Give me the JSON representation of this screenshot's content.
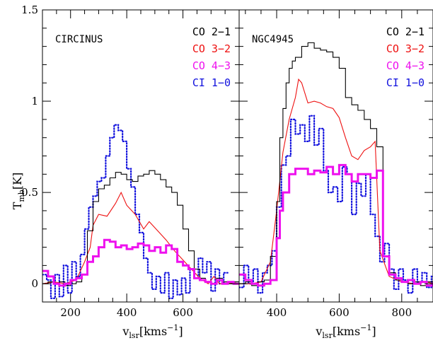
{
  "chart_data": {
    "type": "line",
    "shared_ylabel": {
      "main": "T",
      "sub": "mb",
      "unit": "[K]"
    },
    "shared_xlabel": {
      "main": "v",
      "sub": "lsr",
      "unit_open": "[kms",
      "unit_exp": "−1",
      "unit_close": "]"
    },
    "ylim": [
      -0.1,
      1.5
    ],
    "yticks": [
      {
        "value": 0,
        "label": "0"
      },
      {
        "value": 0.5,
        "label": "0.5"
      },
      {
        "value": 1,
        "label": "1"
      },
      {
        "value": 1.5,
        "label": "1.5"
      }
    ],
    "legend": [
      {
        "label": "CO 2−1",
        "color": "#000000",
        "style": "solid"
      },
      {
        "label": "CO 3−2",
        "color": "#ee1111",
        "style": "solid"
      },
      {
        "label": "CO 4−3",
        "color": "#ee11ee",
        "style": "thick"
      },
      {
        "label": "CI 1−0",
        "color": "#1111dd",
        "style": "dotted"
      }
    ],
    "panels": [
      {
        "name": "CIRCINUS",
        "xlim": [
          100,
          800
        ],
        "xticks": [
          {
            "value": 200,
            "label": "200"
          },
          {
            "value": 400,
            "label": "400"
          },
          {
            "value": 600,
            "label": "600"
          }
        ],
        "series": [
          {
            "key": "co21",
            "x": [
              100,
              120,
              140,
              160,
              180,
              200,
              220,
              240,
              260,
              280,
              300,
              320,
              340,
              360,
              380,
              400,
              420,
              440,
              460,
              480,
              500,
              520,
              540,
              560,
              580,
              600,
              620,
              640,
              660,
              680,
              700,
              720,
              740,
              760,
              780
            ],
            "y": [
              0,
              0.01,
              0,
              0.01,
              -0.01,
              0,
              0.01,
              0.05,
              0.29,
              0.45,
              0.52,
              0.54,
              0.58,
              0.61,
              0.6,
              0.57,
              0.56,
              0.59,
              0.6,
              0.62,
              0.6,
              0.57,
              0.53,
              0.5,
              0.43,
              0.3,
              0.18,
              0.08,
              0.03,
              0.01,
              0,
              0.03,
              0.01,
              0,
              0.01
            ]
          },
          {
            "key": "co32",
            "x": [
              100,
              140,
              180,
              220,
              250,
              270,
              280,
              300,
              330,
              360,
              380,
              400,
              430,
              460,
              480,
              510,
              540,
              570,
              600,
              630,
              660,
              690,
              710,
              730,
              760,
              790
            ],
            "y": [
              0,
              0.01,
              0,
              0.02,
              0.12,
              0.2,
              0.32,
              0.38,
              0.37,
              0.44,
              0.5,
              0.43,
              0.38,
              0.3,
              0.34,
              0.29,
              0.24,
              0.18,
              0.13,
              0.08,
              0.03,
              0,
              0.04,
              0,
              0,
              0.01
            ]
          },
          {
            "key": "co43",
            "x": [
              100,
              120,
              140,
              160,
              180,
              200,
              220,
              240,
              260,
              280,
              300,
              320,
              340,
              360,
              380,
              400,
              420,
              440,
              460,
              480,
              500,
              520,
              540,
              560,
              580,
              600,
              620,
              640,
              660,
              680,
              700,
              720,
              740,
              760,
              780
            ],
            "y": [
              0.07,
              0.04,
              0,
              -0.01,
              0,
              0.02,
              0.03,
              0.05,
              0.12,
              0.15,
              0.2,
              0.24,
              0.23,
              0.2,
              0.21,
              0.19,
              0.2,
              0.22,
              0.21,
              0.18,
              0.2,
              0.17,
              0.21,
              0.19,
              0.12,
              0.1,
              0.08,
              0.03,
              0.02,
              0.01,
              0,
              0.02,
              0,
              0.01,
              0
            ]
          },
          {
            "key": "ci10",
            "x": [
              100,
              115,
              130,
              145,
              160,
              175,
              190,
              205,
              220,
              235,
              250,
              265,
              280,
              295,
              310,
              325,
              340,
              355,
              370,
              385,
              400,
              415,
              430,
              445,
              460,
              475,
              490,
              505,
              520,
              535,
              550,
              565,
              580,
              595,
              610,
              625,
              640,
              655,
              670,
              685,
              700,
              715,
              730,
              745
            ],
            "y": [
              0.05,
              0.02,
              -0.08,
              0.05,
              -0.07,
              0.1,
              -0.05,
              0.12,
              0.04,
              0.16,
              0.3,
              0.42,
              0.48,
              0.56,
              0.58,
              0.7,
              0.8,
              0.87,
              0.84,
              0.78,
              0.63,
              0.53,
              0.38,
              0.28,
              0.14,
              0.06,
              -0.03,
              0.04,
              -0.05,
              0.06,
              -0.08,
              0.02,
              -0.06,
              0.03,
              -0.05,
              0.08,
              0.03,
              0.14,
              0.06,
              0.12,
              -0.04,
              0.08,
              0,
              0.06
            ]
          }
        ]
      },
      {
        "name": "NGC4945",
        "xlim": [
          280,
          900
        ],
        "xticks": [
          {
            "value": 400,
            "label": "400"
          },
          {
            "value": 600,
            "label": "600"
          },
          {
            "value": 800,
            "label": "800"
          }
        ],
        "series": [
          {
            "key": "co21",
            "x": [
              280,
              300,
              320,
              340,
              360,
              380,
              400,
              410,
              420,
              430,
              440,
              450,
              460,
              480,
              500,
              520,
              540,
              560,
              580,
              600,
              620,
              640,
              660,
              680,
              700,
              720,
              740,
              760,
              780,
              800,
              820,
              840,
              860,
              880,
              900
            ],
            "y": [
              0,
              0.01,
              -0.01,
              0.01,
              0.02,
              0.15,
              0.45,
              0.8,
              0.96,
              1.1,
              1.18,
              1.22,
              1.24,
              1.3,
              1.32,
              1.29,
              1.28,
              1.27,
              1.24,
              1.18,
              1.02,
              0.98,
              0.95,
              0.9,
              0.85,
              0.75,
              0.15,
              0.06,
              0.02,
              0.01,
              0,
              0.01,
              -0.01,
              0.01,
              0
            ]
          },
          {
            "key": "co32",
            "x": [
              280,
              320,
              350,
              380,
              400,
              420,
              440,
              460,
              470,
              480,
              500,
              520,
              540,
              560,
              580,
              600,
              620,
              640,
              660,
              680,
              700,
              715,
              730,
              760,
              800,
              840,
              880,
              900
            ],
            "y": [
              0,
              0,
              0.01,
              0.12,
              0.4,
              0.72,
              0.9,
              1.02,
              1.12,
              1.1,
              0.99,
              1.0,
              0.99,
              0.97,
              0.96,
              0.91,
              0.8,
              0.7,
              0.68,
              0.73,
              0.75,
              0.78,
              0.18,
              0.04,
              0.01,
              0,
              0.01,
              0
            ]
          },
          {
            "key": "co43",
            "x": [
              280,
              300,
              320,
              340,
              360,
              380,
              400,
              410,
              420,
              440,
              460,
              480,
              500,
              520,
              540,
              560,
              580,
              600,
              620,
              640,
              660,
              680,
              700,
              720,
              740,
              760,
              780,
              800,
              820,
              840,
              860,
              880,
              900
            ],
            "y": [
              0.05,
              0.02,
              0,
              -0.01,
              0,
              0.02,
              0.25,
              0.4,
              0.5,
              0.6,
              0.63,
              0.63,
              0.6,
              0.62,
              0.61,
              0.64,
              0.6,
              0.65,
              0.6,
              0.56,
              0.6,
              0.6,
              0.58,
              0.62,
              0.15,
              0.05,
              0.03,
              0.01,
              0.02,
              0,
              0.01,
              -0.01,
              0
            ]
          },
          {
            "key": "ci10",
            "x": [
              280,
              295,
              310,
              325,
              340,
              355,
              370,
              385,
              400,
              415,
              430,
              445,
              460,
              475,
              490,
              505,
              520,
              535,
              550,
              565,
              580,
              595,
              610,
              625,
              640,
              655,
              670,
              685,
              700,
              715,
              730,
              745,
              760,
              775,
              790,
              805,
              820,
              835,
              850,
              865,
              880,
              895
            ],
            "y": [
              -0.02,
              0.1,
              0,
              0.08,
              -0.05,
              0.06,
              0.1,
              0.18,
              0.42,
              0.65,
              0.7,
              0.9,
              0.82,
              0.87,
              0.78,
              0.92,
              0.76,
              0.85,
              0.62,
              0.5,
              0.53,
              0.45,
              0.64,
              0.6,
              0.38,
              0.55,
              0.48,
              0.6,
              0.38,
              0.26,
              0.12,
              0.22,
              0.08,
              -0.03,
              0.08,
              0.02,
              -0.05,
              0.08,
              0.01,
              0.06,
              -0.02,
              0.04
            ]
          }
        ]
      }
    ]
  }
}
